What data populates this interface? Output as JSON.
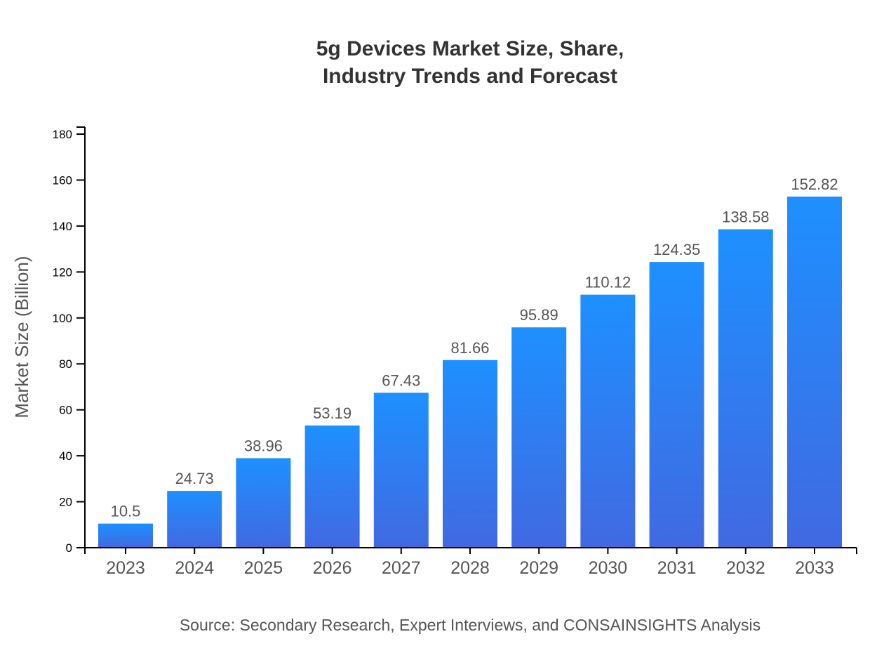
{
  "chart_data": {
    "type": "bar",
    "title_lines": [
      "5g Devices Market Size, Share,",
      "Industry Trends and Forecast"
    ],
    "categories": [
      "2023",
      "2024",
      "2025",
      "2026",
      "2027",
      "2028",
      "2029",
      "2030",
      "2031",
      "2032",
      "2033"
    ],
    "values": [
      10.5,
      24.73,
      38.96,
      53.19,
      67.43,
      81.66,
      95.89,
      110.12,
      124.35,
      138.58,
      152.82
    ],
    "value_labels": [
      "10.5",
      "24.73",
      "38.96",
      "53.19",
      "67.43",
      "81.66",
      "95.89",
      "110.12",
      "124.35",
      "138.58",
      "152.82"
    ],
    "xlabel": "",
    "ylabel": "Market Size (Billion)",
    "ylim": [
      0,
      180
    ],
    "yticks": [
      0,
      20,
      40,
      60,
      80,
      100,
      120,
      140,
      160,
      180
    ],
    "grid": false,
    "colors": {
      "bar_top": "#1e90ff",
      "bar_bottom": "#4169e1"
    },
    "source": "Source: Secondary Research, Expert Interviews, and CONSAINSIGHTS Analysis"
  }
}
